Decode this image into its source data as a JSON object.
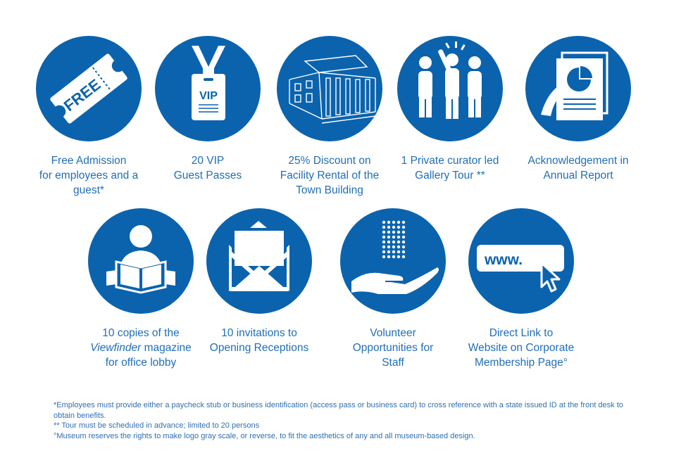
{
  "colors": {
    "circle": "#0b63ad",
    "text": "#1f6fb8",
    "icon": "#ffffff"
  },
  "benefits": [
    {
      "icon": "free-ticket-icon",
      "ticket_text": "FREE",
      "lines": [
        "Free Admission",
        "for employees and a",
        "guest*"
      ]
    },
    {
      "icon": "vip-badge-icon",
      "badge_text": "VIP",
      "lines": [
        "20 VIP",
        "Guest Passes"
      ]
    },
    {
      "icon": "town-building-icon",
      "lines": [
        "25% Discount on",
        "Facility Rental of the",
        "Town Building"
      ]
    },
    {
      "icon": "curator-tour-icon",
      "lines": [
        "1 Private curator led",
        "Gallery Tour **"
      ]
    },
    {
      "icon": "annual-report-icon",
      "lines": [
        "Acknowledgement in",
        "Annual Report"
      ]
    },
    {
      "icon": "reading-magazine-icon",
      "lines": [
        "10 copies of the",
        "magazine",
        "for office lobby"
      ],
      "magazine_name": "Viewfinder"
    },
    {
      "icon": "envelope-icon",
      "lines": [
        "10 invitations to",
        "Opening Receptions"
      ]
    },
    {
      "icon": "volunteer-hand-icon",
      "lines": [
        "Volunteer",
        "Opportunities for",
        "Staff"
      ]
    },
    {
      "icon": "website-link-icon",
      "url_text": "www.",
      "lines": [
        "Direct Link to",
        "Website on Corporate",
        "Membership Page°"
      ]
    }
  ],
  "footnotes": [
    "*Employees must provide either a paycheck stub or business identification (access pass or business card) to cross reference with a state issued ID at the front desk to obtain benefits.",
    "** Tour must be scheduled in advance; limited to 20 persons",
    "°Museum reserves the rights to make logo gray scale, or reverse, to fit the aesthetics of any and all museum-based design."
  ]
}
